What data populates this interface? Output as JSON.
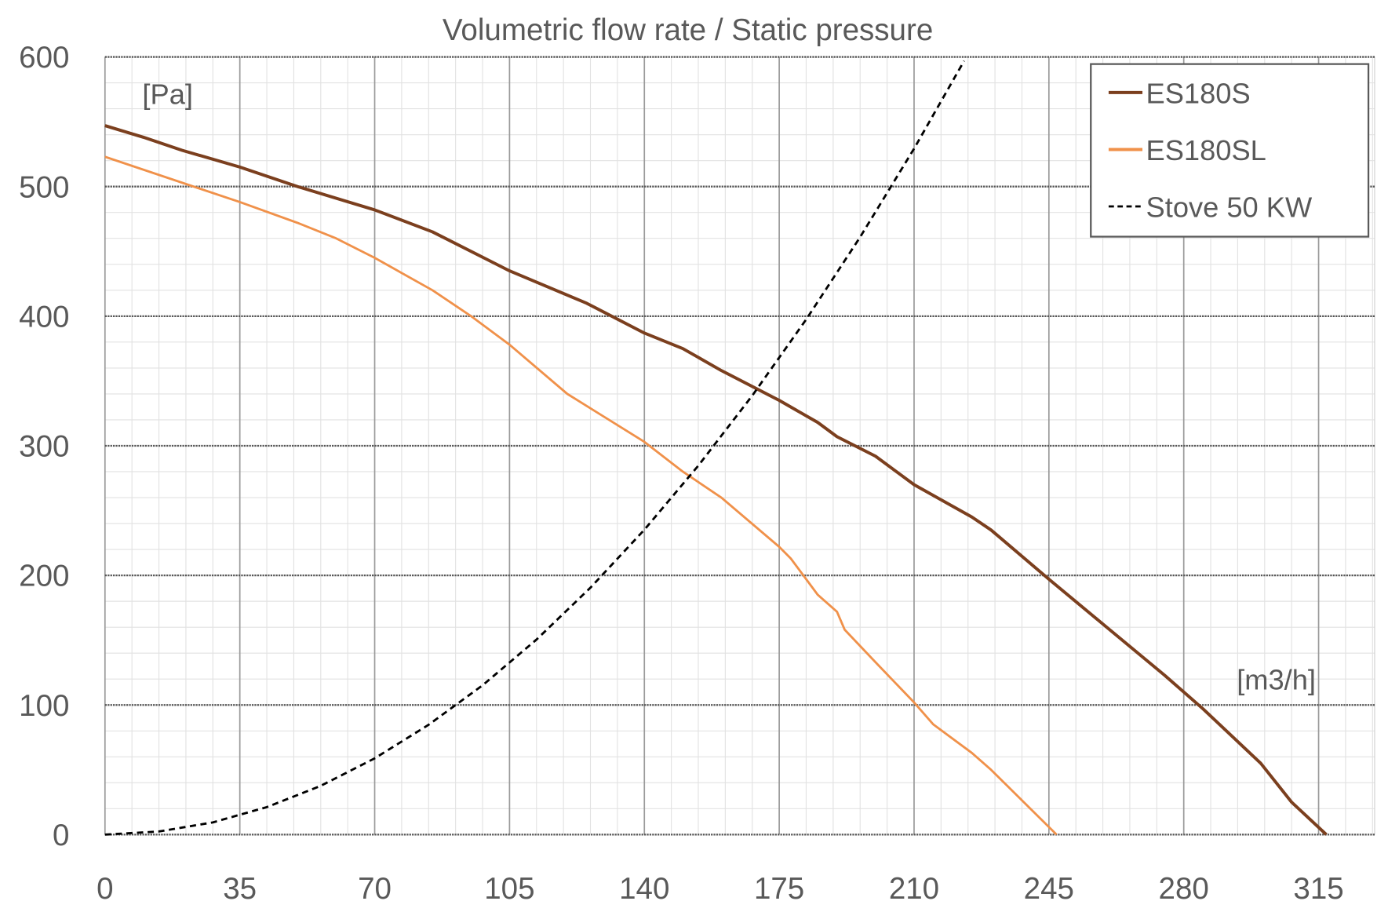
{
  "chart_data": {
    "type": "line",
    "title": "Volumetric flow rate / Static pressure",
    "xlabel": "[m3/h]",
    "ylabel": "[Pa]",
    "xlim": [
      0,
      329
    ],
    "ylim": [
      0,
      600
    ],
    "xticks": [
      0,
      35,
      70,
      105,
      140,
      175,
      210,
      245,
      280,
      315
    ],
    "yticks": [
      0,
      100,
      200,
      300,
      400,
      500,
      600
    ],
    "x_minor_step": 7,
    "y_minor_step": 20,
    "grid": true,
    "legend_position": "top-right",
    "series": [
      {
        "name": "ES180S",
        "color": "#7B3F1E",
        "dash": false,
        "x": [
          0,
          10,
          20,
          35,
          50,
          70,
          85,
          105,
          125,
          140,
          150,
          160,
          175,
          185,
          190,
          200,
          210,
          225,
          230,
          245,
          260,
          275,
          285,
          300,
          308,
          317
        ],
        "y": [
          547,
          538,
          528,
          515,
          500,
          482,
          465,
          435,
          410,
          387,
          375,
          358,
          335,
          318,
          307,
          292,
          270,
          245,
          235,
          197,
          160,
          123,
          97,
          55,
          25,
          0
        ]
      },
      {
        "name": "ES180SL",
        "color": "#F0914A",
        "dash": false,
        "x": [
          0,
          20,
          35,
          50,
          60,
          70,
          85,
          95,
          105,
          120,
          140,
          150,
          160,
          175,
          178,
          185,
          190,
          192,
          200,
          210,
          215,
          225,
          230,
          247
        ],
        "y": [
          523,
          503,
          488,
          472,
          460,
          445,
          420,
          400,
          378,
          340,
          303,
          280,
          260,
          222,
          213,
          185,
          172,
          158,
          133,
          102,
          85,
          63,
          50,
          0
        ]
      },
      {
        "name": "Stove 50 KW",
        "color": "#000000",
        "dash": true,
        "x": [
          0,
          14,
          28,
          42,
          56,
          70,
          84,
          98,
          112,
          126,
          140,
          154,
          168,
          182,
          196,
          210,
          223
        ],
        "y": [
          0,
          2.4,
          9.4,
          21.2,
          37.6,
          58.8,
          84.7,
          115.2,
          150.5,
          190.5,
          235.2,
          284.6,
          338.7,
          397.5,
          461,
          529.2,
          597
        ]
      }
    ]
  }
}
